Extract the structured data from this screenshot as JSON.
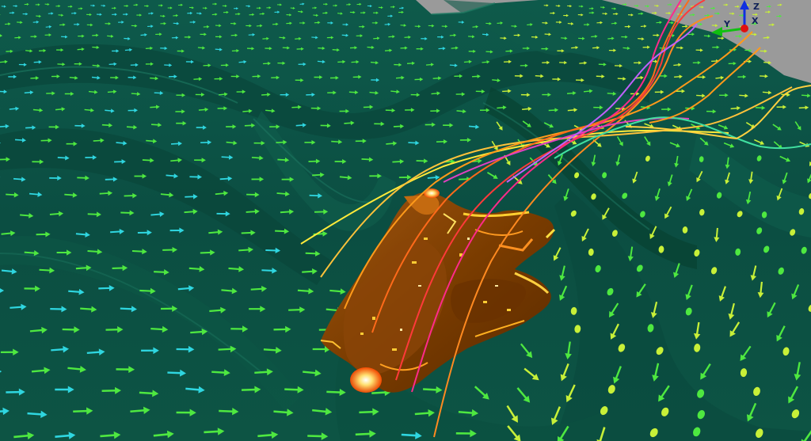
{
  "scene": {
    "colors": {
      "sky": "#9a9a9a",
      "terrain": "#0b4e42",
      "terrain_light": "#176a58",
      "terrain_dark": "#063a30",
      "plume": "#7a3c00",
      "plume_light": "#a85a0a",
      "plume_edge": "#ffc21a",
      "arrow_cyan": "#2fd6e0",
      "arrow_green": "#4ee840",
      "arrow_yellow": "#c8f038"
    },
    "streamline_colors": [
      "#ffea3a",
      "#ffc23a",
      "#ff8a1a",
      "#ff5a1a",
      "#ff2a6a",
      "#e040c0",
      "#c060ff",
      "#40e0a0"
    ]
  },
  "axes": {
    "x_label": "X",
    "y_label": "Y",
    "z_label": "Z",
    "x_color": "#e01010",
    "y_color": "#10c010",
    "z_color": "#1030e0"
  }
}
